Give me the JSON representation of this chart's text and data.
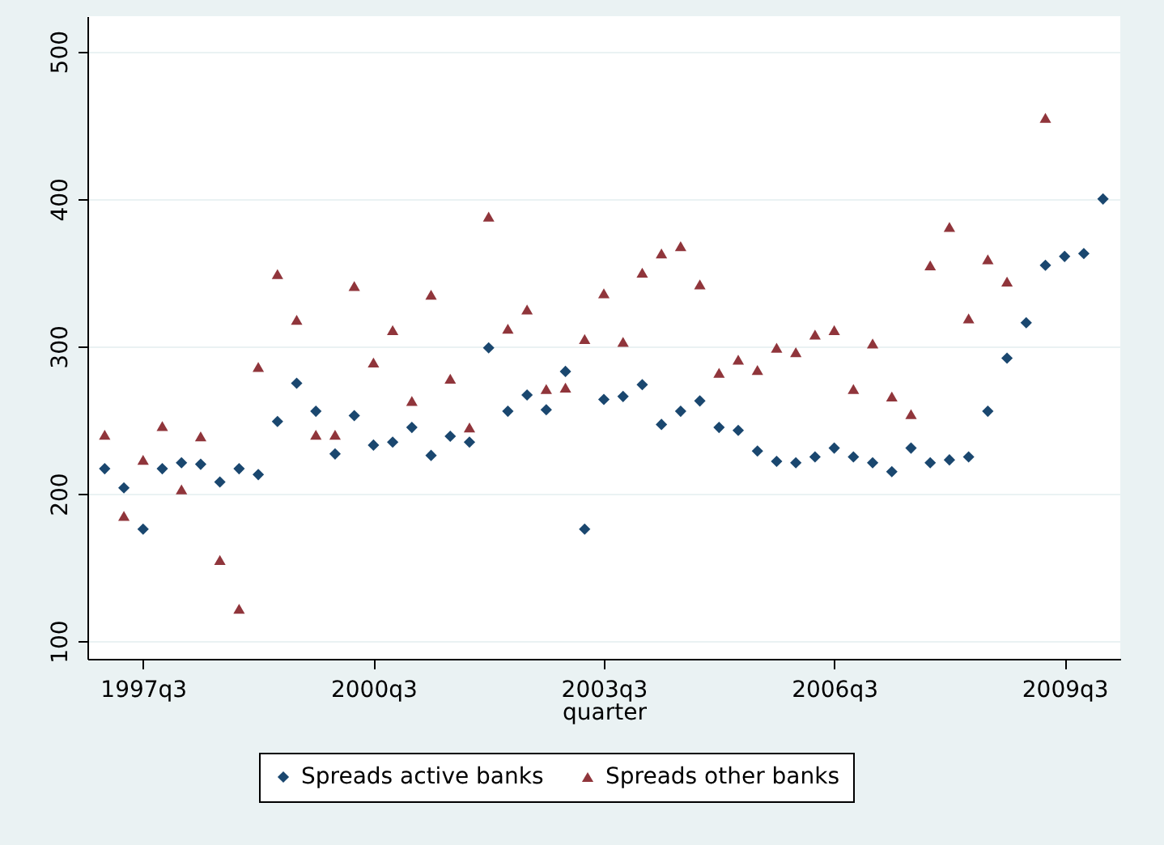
{
  "chart_data": {
    "type": "scatter",
    "xlabel": "quarter",
    "categories": [
      null,
      null,
      "1997q3",
      null,
      null,
      null,
      null,
      null,
      null,
      null,
      null,
      null,
      null,
      null,
      "2000q3",
      null,
      null,
      null,
      null,
      null,
      null,
      null,
      null,
      null,
      null,
      null,
      "2003q3",
      null,
      null,
      null,
      null,
      null,
      null,
      null,
      null,
      null,
      null,
      null,
      "2006q3",
      null,
      null,
      null,
      null,
      null,
      null,
      null,
      null,
      null,
      null,
      null,
      "2009q3",
      null,
      null
    ],
    "series": [
      {
        "name": "Spreads active banks",
        "color": "#1a476f",
        "marker": "diamond",
        "values": [
          217,
          204,
          176,
          217,
          221,
          220,
          208,
          217,
          213,
          249,
          275,
          256,
          227,
          253,
          233,
          235,
          245,
          226,
          239,
          235,
          299,
          256,
          267,
          257,
          283,
          176,
          264,
          266,
          274,
          247,
          256,
          263,
          245,
          243,
          229,
          222,
          221,
          225,
          231,
          225,
          221,
          215,
          231,
          221,
          223,
          225,
          256,
          292,
          316,
          355,
          361,
          363,
          400
        ]
      },
      {
        "name": "Spreads other banks",
        "color": "#90353b",
        "marker": "triangle",
        "values": [
          240,
          185,
          223,
          246,
          203,
          239,
          155,
          122,
          286,
          349,
          318,
          240,
          240,
          341,
          289,
          311,
          263,
          335,
          278,
          245,
          388,
          312,
          325,
          271,
          272,
          305,
          336,
          303,
          350,
          363,
          368,
          342,
          282,
          291,
          284,
          299,
          296,
          308,
          311,
          271,
          302,
          266,
          254,
          355,
          381,
          319,
          359,
          344,
          null,
          455,
          null,
          null,
          null
        ]
      }
    ],
    "ylim": [
      88,
      524
    ],
    "yticks": [
      100,
      200,
      300,
      400,
      500
    ],
    "grid": "y",
    "legend": "bottom"
  }
}
